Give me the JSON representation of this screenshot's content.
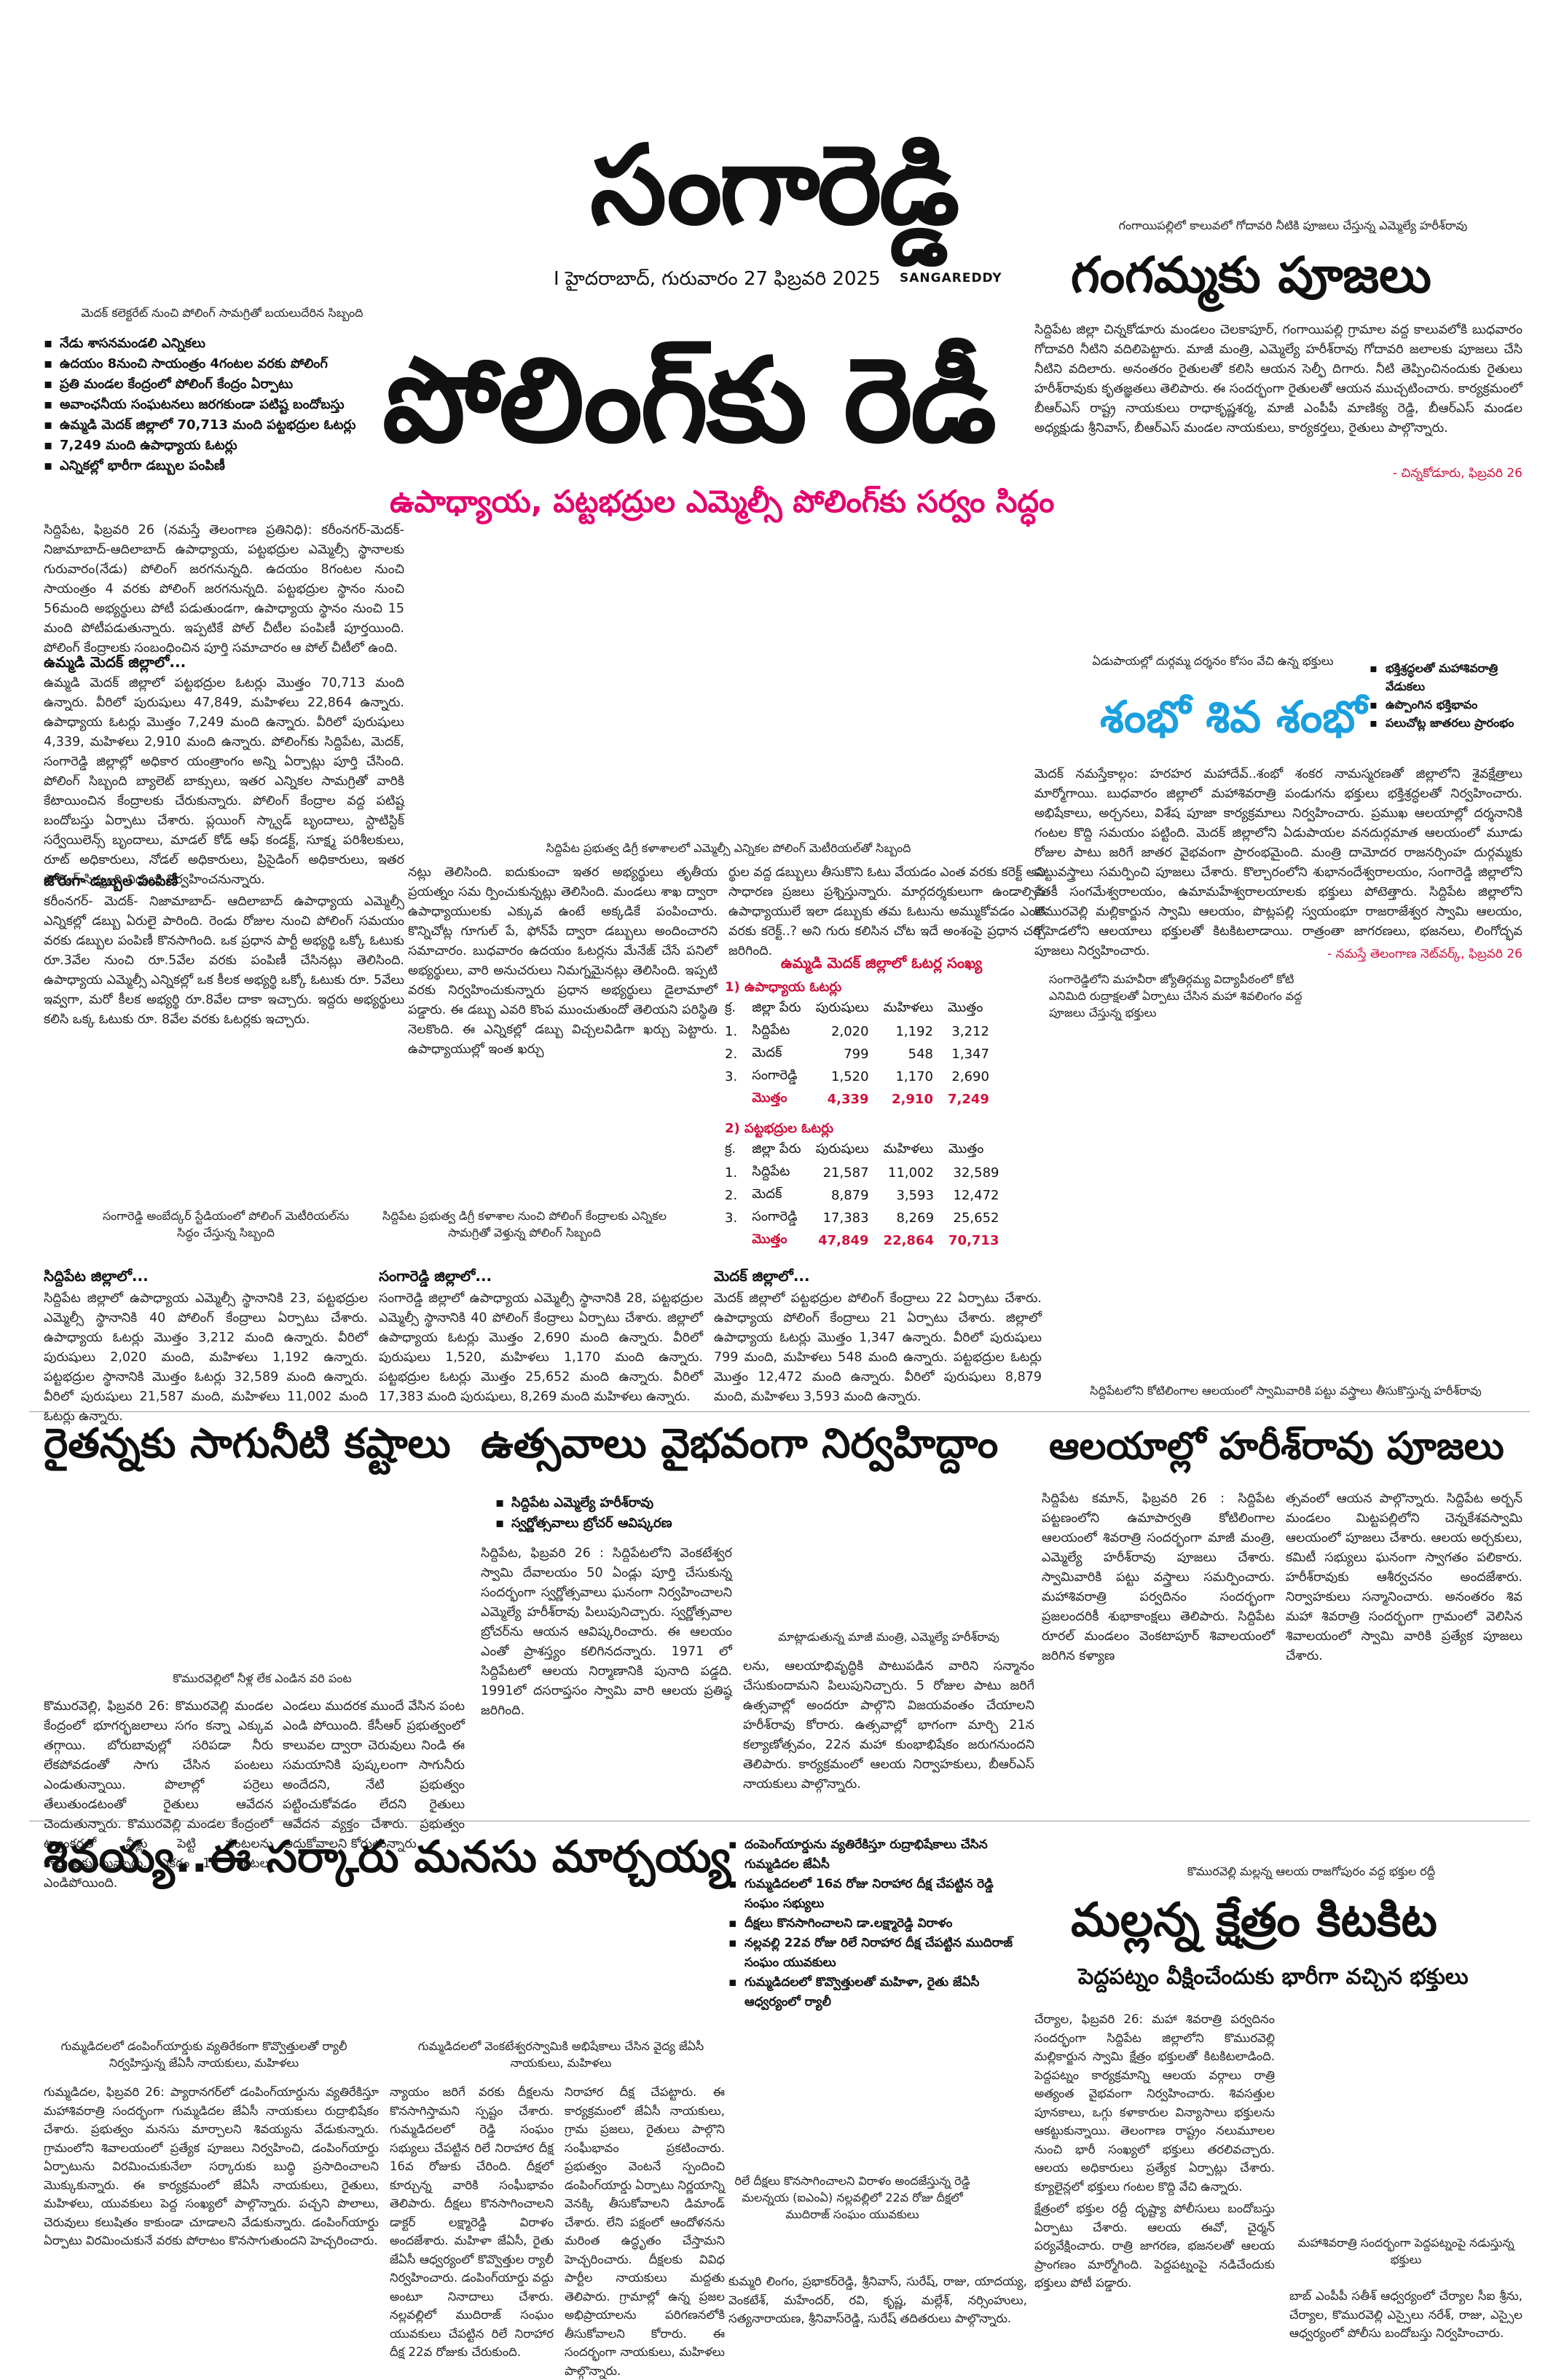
{
  "masthead": {
    "title": "సంగారెడ్డి",
    "subtitle": "SANGAREDDY",
    "dateline": "I   హైదరాబాద్, గురువారం 27 ఫిబ్రవరి 2025"
  },
  "lead": {
    "photo_caption": "మెదక్ కలెక్టరేట్ నుంచి పోలింగ్ సామగ్రితో బయలుదేరిన సిబ్బంది",
    "headline": "పోలింగ్‌కు రెడీ",
    "subheadline": "ఉపాధ్యాయ, పట్టభద్రుల ఎమ్మెల్సీ పోలింగ్‌కు సర్వం సిద్ధం",
    "bullets": [
      "నేడు శాసనమండలి ఎన్నికలు",
      "ఉదయం 8నుంచి సాయంత్రం 4గంటల వరకు పోలింగ్",
      "ప్రతి మండల కేంద్రంలో పోలింగ్ కేంద్రం ఏర్పాటు",
      "అవాంఛనీయ సంఘటనలు జరగకుండా పటిష్ట బందోబస్తు",
      "ఉమ్మడి మెదక్ జిల్లాలో 70,713 మంది పట్టభద్రుల ఓటర్లు",
      "7,249 మంది ఉపాధ్యాయ ఓటర్లు",
      "ఎన్నికల్లో భారీగా డబ్బుల పంపిణీ"
    ],
    "intro": "సిద్దిపేట, ఫిబ్రవరి 26 (నమస్తే తెలంగాణ ప్రతినిధి): కరీంనగర్-మెదక్-నిజామాబాద్-ఆదిలాబాద్ ఉపాధ్యాయ, పట్టభద్రుల ఎమ్మెల్సీ స్థానాలకు గురువారం(నేడు) పోలింగ్ జరగనున్నది. ఉదయం 8గంటల నుంచి సాయంత్రం 4 వరకు పోలింగ్ జరగనున్నది. పట్టభద్రుల స్థానం నుంచి 56మంది అభ్యర్థులు పోటీ పడుతుండగా, ఉపాధ్యాయ స్థానం నుంచి 15 మంది పోటీపడుతున్నారు. ఇప్పటికే పోల్ చీటీల పంపిణీ పూర్తయింది. పోలింగ్ కేంద్రాలకు సంబంధించిన పూర్తి సమాచారం ఆ పోల్ చీటీలో ఉంది.",
    "sub1": "ఉమ్మడి మెదక్ జిల్లాలో...",
    "p1": "ఉమ్మడి మెదక్ జిల్లాలో పట్టభద్రుల ఓటర్లు మొత్తం 70,713 మంది ఉన్నారు. వీరిలో పురుషులు 47,849, మహిళలు 22,864 ఉన్నారు. ఉపాధ్యాయ ఓటర్లు మొత్తం 7,249 మంది ఉన్నారు. వీరిలో పురుషులు 4,339, మహిళలు 2,910 మంది ఉన్నారు. పోలింగ్‌కు సిద్దిపేట, మెదక్, సంగారెడ్డి జిల్లాల్లో అధికార యంత్రాంగం అన్ని ఏర్పాట్లు పూర్తి చేసింది. పోలింగ్ సిబ్బంది బ్యాలెట్ బాక్సులు, ఇతర ఎన్నికల సామగ్రితో వారికి కేటాయించిన కేంద్రాలకు చేరుకున్నారు. పోలింగ్ కేంద్రాల వద్ద పటిష్ట బందోబస్తు ఏర్పాటు చేశారు. ప్లయింగ్ స్క్వాడ్ బృందాలు, స్టాటిస్టిక్ సర్వేయిలెన్స్ బృందాలు, మాడల్ కోడ్ ఆఫ్ కండక్ట్, సూక్ష్మ పరిశీలకులు, రూట్ అధికారులు, నోడల్ అధికారులు, ప్రిసైడింగ్ అధికారులు, ఇతర పోలింగ్ సిబ్బంది విధులు నిర్వహించనున్నారు.",
    "sub2": "జోరుగా డబ్బుల పంపిణీ",
    "p2": "కరీంనగర్- మెదక్- నిజామాబాద్- ఆదిలాబాద్ ఉపాధ్యాయ ఎమ్మెల్సీ ఎన్నికల్లో డబ్బు ఏరులై పారింది. రెండు రోజుల నుంచి పోలింగ్ సమయం వరకు డబ్బుల పంపిణీ కొనసాగింది. ఒక ప్రధాన పార్టీ అభ్యర్థి ఒక్కో ఓటుకు రూ.3వేల నుంచి రూ.5వేల వరకు పంపిణీ చేసినట్లు తెలిసింది. ఉపాధ్యాయ ఎమ్మెల్సీ ఎన్నికల్లో ఒక కీలక అభ్యర్థి ఒక్కో ఓటుకు రూ. 5వేలు ఇవ్వగా, మరో కీలక అభ్యర్థి రూ.8వేల దాకా ఇచ్చారు. ఇద్దరు అభ్యర్థులు కలిసి ఒక్క ఓటుకు రూ. 8వేల వరకు ఓటర్లకు ఇచ్చారు.",
    "photo_caption_mid": "సిద్దిపేట ప్రభుత్వ డిగ్రీ కళాశాలలో ఎమ్మెల్సీ ఎన్నికల పోలింగ్ మెటీరియల్‌తో సిబ్బంది",
    "p3": "నట్లు తెలిసింది. ఐదుకుంచా ఇతర అభ్యర్థులు తృతీయ ప్రయత్నం సమ ర్పించుకున్నట్లు తెలిసింది. మండలు శాఖ ద్వారా ఉపాధ్యాయులకు ఎక్కువ ఉంటే అక్కడికే పంపించారు. కొన్నిచోట్ల గూగుల్ పే, ఫోన్‌పే ద్వారా డబ్బులు అందించారని సమాచారం. బుధవారం ఉదయం ఓటర్లను మేనేజ్ చేసే పనిలో అభ్యర్థులు, వారి అనుచరులు నిమగ్నమైనట్లు తెలిసింది. ఇప్పటి వరకు నిర్వహించుకున్నారు ప్రధాన అభ్యర్థులు డైలామాలో పడ్డారు. ఈ డబ్బు ఎవరి కొంప ముంచుతుందో తెలియని పరిస్థితి నెలకొంది. ఈ ఎన్నికల్లో డబ్బు విచ్చలవిడిగా ఖర్చు పెట్టారు. ఉపాధ్యాయుల్లో ఇంత ఖర్చు",
    "p4": "ర్థుల వద్ద డబ్బులు తీసుకొని ఓటు వేయడం ఎంత వరకు కరెక్ట్ అని సాధారణ ప్రజలు ప్రశ్నిస్తున్నారు. మార్గదర్శకులుగా ఉండాల్సిన ఉపాధ్యాయులే ఇలా డబ్బుకు తమ ఓటును అమ్ముకోవడం ఎంత వరకు కరెక్ట్..? అని గురు కలిసిన చోట ఇదే అంశంపై ప్రధాన చర్చ జరిగింది.",
    "table": {
      "title": "ఉమ్మడి మెదక్ జిల్లాలో ఓటర్ల సంఖ్య",
      "sec1_title": "1) ఉపాధ్యాయ ఓటర్లు",
      "sec2_title": "2) పట్టభద్రుల ఓటర్లు",
      "headers": [
        "క్ర.",
        "జిల్లా పేరు",
        "పురుషులు",
        "మహిళలు",
        "మొత్తం"
      ],
      "sec1_rows": [
        [
          "1.",
          "సిద్దిపేట",
          "2,020",
          "1,192",
          "3,212"
        ],
        [
          "2.",
          "మెదక్",
          "799",
          "548",
          "1,347"
        ],
        [
          "3.",
          "సంగారెడ్డి",
          "1,520",
          "1,170",
          "2,690"
        ]
      ],
      "sec1_total": [
        "",
        "మొత్తం",
        "4,339",
        "2,910",
        "7,249"
      ],
      "sec2_rows": [
        [
          "1.",
          "సిద్దిపేట",
          "21,587",
          "11,002",
          "32,589"
        ],
        [
          "2.",
          "మెదక్",
          "8,879",
          "3,593",
          "12,472"
        ],
        [
          "3.",
          "సంగారెడ్డి",
          "17,383",
          "8,269",
          "25,652"
        ]
      ],
      "sec2_total": [
        "",
        "మొత్తం",
        "47,849",
        "22,864",
        "70,713"
      ]
    },
    "cap_a": "సంగారెడ్డి అంబేద్కర్ స్టేడియంలో పోలింగ్ మెటీరియల్‌ను సిద్ధం చేస్తున్న సిబ్బంది",
    "cap_b": "సిద్దిపేట ప్రభుత్వ డిగ్రీ కళాశాల నుంచి పోలింగ్ కేంద్రాలకు ఎన్నికల సామగ్రితో వెళ్తున్న పోలింగ్ సిబ్బంది",
    "cap_c": "మెదక్ జిల్లాలో...",
    "col_a_sub": "సిద్దిపేట జిల్లాలో...",
    "col_a_text": "సిద్దిపేట జిల్లాలో ఉపాధ్యాయ ఎమ్మెల్సీ స్థానానికి 23, పట్టభద్రుల ఎమ్మెల్సీ స్థానానికి 40 పోలింగ్ కేంద్రాలు ఏర్పాటు చేశారు. ఉపాధ్యాయ ఓటర్లు మొత్తం 3,212 మంది ఉన్నారు. వీరిలో పురుషులు 2,020 మంది, మహిళలు 1,192 ఉన్నారు. పట్టభద్రుల స్థానానికి మొత్తం ఓటర్లు 32,589 మంది ఉన్నారు. వీరిలో పురుషులు 21,587 మంది, మహిళలు 11,002 మంది ఓటర్లు ఉన్నారు.",
    "col_b_sub": "సంగారెడ్డి జిల్లాలో...",
    "col_b_text": "సంగారెడ్డి జిల్లాలో ఉపాధ్యాయ ఎమ్మెల్సీ స్థానానికి 28, పట్టభద్రుల ఎమ్మెల్సీ స్థానానికి 40 పోలింగ్ కేంద్రాలు ఏర్పాటు చేశారు. జిల్లాలో ఉపాధ్యాయ ఓటర్లు మొత్తం 2,690 మంది ఉన్నారు. వీరిలో పురుషులు 1,520, మహిళలు 1,170 మంది ఉన్నారు. పట్టభద్రుల ఓటర్లు మొత్తం 25,652 మంది ఉన్నారు. వీరిలో 17,383 మంది పురుషులు, 8,269 మంది మహిళలు ఉన్నారు.",
    "col_c_text": "మెదక్ జిల్లాలో పట్టభద్రుల పోలింగ్ కేంద్రాలు 22 ఏర్పాటు చేశారు. ఉపాధ్యాయ పోలింగ్ కేంద్రాలు 21 ఏర్పాటు చేశారు. జిల్లాలో ఉపాధ్యాయ ఓటర్లు మొత్తం 1,347 ఉన్నారు. వీరిలో పురుషులు 799 మంది, మహిళలు 548 మంది ఉన్నారు. పట్టభద్రుల ఓటర్లు మొత్తం 12,472 మంది ఉన్నారు. వీరిలో పురుషులు 8,879 మంది, మహిళలు 3,593 మంది ఉన్నారు."
  },
  "ganga": {
    "kicker": "గంగాయిపల్లిలో కాలువలో గోదావరి నీటికి పూజలు చేస్తున్న ఎమ్మెల్యే హరీశ్‌రావు",
    "headline": "గంగమ్మకు పూజలు",
    "body": "సిద్దిపేట జిల్లా చిన్నకోడూరు మండలం చెలకాపూర్, గంగాయిపల్లి గ్రామాల వద్ద కాలువలోకి బుధవారం గోదావరి నీటిని వదిలిపెట్టారు. మాజీ మంత్రి, ఎమ్మెల్యే హరీశ్‌రావు గోదావరి జలాలకు పూజలు చేసి నీటిని వదిలారు. అనంతరం రైతులతో కలిసి ఆయన సెల్ఫీ దిగారు. నీటి తెప్పించినందుకు రైతులు హరీశ్‌రావుకు కృతజ్ఞతలు తెలిపారు. ఈ సందర్భంగా రైతులతో ఆయన ముచ్చటించారు. కార్యక్రమంలో బీఆర్ఎస్ రాష్ట్ర నాయకులు రాధాకృష్ణశర్మ, మాజీ ఎంపీపీ మాణిక్య రెడ్డి, బీఆర్ఎస్ మండల అధ్యక్షుడు శ్రీనివాస్, బీఆర్ఎస్ మండల నాయకులు, కార్యకర్తలు, రైతులు పాల్గొన్నారు.",
    "sig": "- చిన్నకోడూరు, ఫిబ్రవరి 26"
  },
  "shambho": {
    "kicker": "ఏడుపాయల్లో దుర్గమ్మ దర్శనం కోసం వేచి ఉన్న భక్తులు",
    "headline": "శంభో శివ శంభో",
    "bullets": [
      "భక్తిశ్రద్ధలతో మహాశివరాత్రి వేడుకలు",
      "ఉప్పొంగిన భక్తిభావం",
      "పలుచోట్ల జాతరలు ప్రారంభం"
    ],
    "body": "మెదక్ నమస్తేకాల్గం: హరహర మహాదేవ్..శంభో శంకర నామస్మరణతో జిల్లాలోని శైవక్షేత్రాలు మార్మోగాయి. బుధవారం జిల్లాలో మహాశివరాత్రి పండుగను భక్తులు భక్తిశ్రద్ధలతో నిర్వహించారు. అభిషేకాలు, అర్చనలు, విశేష పూజా కార్యక్రమాలు నిర్వహించారు. ప్రముఖ ఆలయాల్లో దర్శనానికి గంటల కొద్ది సమయం పట్టింది. మెదక్ జిల్లాలోని ఏడుపాయల వనదుర్గమాత ఆలయంలో మూడు రోజుల పాటు జరిగే జాతర వైభవంగా ప్రారంభమైంది. మంత్రి దామోదర రాజనర్సింహ దుర్గమ్మకు పట్టువస్త్రాలు సమర్పించి పూజలు చేశారు. కొల్చారంలోని శుభానందేశ్వరాలయం, సంగారెడ్డి జిల్లాలోని కేతకీ సంగమేశ్వరాలయం, ఉమామహేశ్వరాలయాలకు భక్తులు పోటెత్తారు. సిద్దిపేట జిల్లాలోని కొమురవెల్లి మల్లికార్జున స్వామి ఆలయం, పొట్లపల్లి స్వయంభూ రాజరాజేశ్వర స్వామి ఆలయం, కోహెడలోని ఆలయాలు భక్తులతో కిటకిటలాడాయి. రాత్రంతా జాగరణలు, భజనలు, లింగోద్భవ పూజలు నిర్వహించారు.",
    "sig": "- నమస్తే తెలంగాణ నెట్‌వర్క్, ఫిబ్రవరి 26",
    "cap_right": "సంగారెడ్డిలోని మహవీరా జ్యోతిర్గమ్య విద్యాపీఠంలో కోటి ఎనిమిది రుద్రాక్షలతో ఏర్పాటు చేసిన మహా శివలింగం వద్ద పూజలు చేస్తున్న భక్తులు"
  },
  "raithu": {
    "headline": "రైతన్నకు సాగునీటి కష్టాలు",
    "photo_caption": "కొమురవెల్లిలో నీళ్ల లేక ఎండిన వరి పంట",
    "body1": "కొమురవెల్లి, ఫిబ్రవరి 26: కొమురవెల్లి మండల కేంద్రంలో భూగర్భజలాలు సగం కన్నా ఎక్కువ తగ్గాయి. బోరుబావుల్లో సరిపడా నీరు లేకపోవడంతో సాగు చేసిన పంటలు ఎండుతున్నాయి. పొలాల్లో పర్రెలు తేలుతుండటంతో రైతులు ఆవేదన చెందుతున్నారు. కొమురవెల్లి మండల కేంద్రంలో ట్యాంకర్లతో నీళ్లు పెట్టి పంటలను కాపాడుకుంటున్నారు. ఎకరం 10 గుంటలు ఎండిపోయింది.",
    "body2": "ఎండలు ముదరక ముందే వేసిన పంట ఎండి పోయింది. కేసీఆర్ ప్రభుత్వంలో కాలువల ద్వారా చెరువులు నిండి ఈ సమయానికి పుష్కలంగా సాగునీరు అందేదని, నేటి ప్రభుత్వం పట్టించుకోవడం లేదని రైతులు ఆవేదన వ్యక్తం చేశారు. ప్రభుత్వం ఆదుకోవాలని కోరుతున్నారు."
  },
  "utsavalu": {
    "headline": "ఉత్సవాలు వైభవంగా నిర్వహిద్దాం",
    "bullets": [
      "సిద్దిపేట ఎమ్మెల్యే హరీశ్‌రావు",
      "స్వర్ణోత్సవాలు బ్రోచర్ ఆవిష్కరణ"
    ],
    "body1": "సిద్దిపేట, ఫిబ్రవరి 26 : సిద్దిపేటలోని వెంకటేశ్వర స్వామి దేవాలయం 50 ఏండ్లు పూర్తి చేసుకున్న సందర్భంగా స్వర్ణోత్సవాలు ఘనంగా నిర్వహించాలని ఎమ్మెల్యే హరీశ్‌రావు పిలుపునిచ్చారు. స్వర్ణోత్సవాల బ్రోచర్‌ను ఆయన ఆవిష్కరించారు. ఈ ఆలయం ఎంతో ప్రాశస్త్యం కలిగినదన్నారు. 1971 లో సిద్దిపేటలో ఆలయ నిర్మాణానికి పునాది పడ్డది. 1991లో దసరాప్తసం స్వామి వారి ఆలయ ప్రతిష్ఠ జరిగింది.",
    "photo_caption": "మాట్లాడుతున్న మాజీ మంత్రి, ఎమ్మెల్యే హరీశ్‌రావు",
    "body2": "లను, ఆలయాభివృద్ధికి పాటుపడిన వారిని సన్మానం చేసుకుందామని పిలుపునిచ్చారు. 5 రోజుల పాటు జరిగే ఉత్సవాల్లో అందరూ పాల్గొని విజయవంతం చేయాలని హరీశ్‌రావు కోరారు. ఉత్సవాల్లో భాగంగా మార్చి 21న కల్యాణోత్సవం, 22న మహా కుంభాభిషేకం జరుగనుందని తెలిపారు. కార్యక్రమంలో ఆలయ నిర్వాహకులు, బీఆర్ఎస్ నాయకులు పాల్గొన్నారు."
  },
  "alayalu": {
    "kicker": "సిద్దిపేటలోని కోటిలింగాల ఆలయంలో స్వామివారికి పట్టు వస్త్రాలు తీసుకొస్తున్న హరీశ్‌రావు",
    "headline": "ఆలయాల్లో హరీశ్‌రావు పూజలు",
    "body1": "సిద్దిపేట కమాన్, ఫిబ్రవరి 26 : సిద్దిపేట పట్టణంలోని ఉమాపార్వతి కోటిలింగాల ఆలయంలో శివరాత్రి సందర్భంగా మాజీ మంత్రి, ఎమ్మెల్యే హరీశ్‌రావు పూజలు చేశారు. స్వామివారికి పట్టు వస్త్రాలు సమర్పించారు. మహాశివరాత్రి పర్వదినం సందర్భంగా ప్రజలందరికీ శుభాకాంక్షలు తెలిపారు. సిద్దిపేట రూరల్ మండలం వెంకటాపూర్ శివాలయంలో జరిగిన కళ్యాణ",
    "body2": "త్సవంలో ఆయన పాల్గొన్నారు. సిద్దిపేట అర్బన్ మండలం మిట్టపల్లిలోని చెన్నకేశవస్వామి ఆలయంలో పూజలు చేశారు. ఆలయ అర్చకులు, కమిటీ సభ్యులు ఘనంగా స్వాగతం పలికారు. హరీశ్‌రావుకు ఆశీర్వచనం అందజేశారు. నిర్వాహకులు సన్మానించారు. అనంతరం శివ మహా శివరాత్రి సందర్భంగా గ్రామంలో వెలిసిన శివాలయంలో స్వామి వారికి ప్రత్యేక పూజలు చేశారు."
  },
  "shivayya": {
    "headline": "శివయ్య..ఈ సర్కారు మనసు మార్చయ్య",
    "bullets": [
      "దంపెంగ్‌యార్డును వ్యతిరేకిస్తూ రుద్రాభిషేకాలు చేసిన గుమ్మడిదల జేఏసీ",
      "గుమ్మడిదలలో 16వ రోజు నిరాహార దీక్ష చేపట్టిన రెడ్డి సంఘం సభ్యులు",
      "దీక్షలు కొనసాగించాలని డా.లక్ష్మారెడ్డి విరాళం",
      "నల్లవల్లి 22వ రోజు రిలే నిరాహార దీక్ష చేపట్టిన ముదిరాజ్ సంఘం యువకులు",
      "గుమ్మడిదలలో కొవ్వొత్తులతో మహిళా, రైతు జేఏసీ ఆధ్వర్యంలో ర్యాలీ"
    ],
    "cap_left": "గుమ్మడిదలలో డంపింగ్‌యార్డుకు వ్యతిరేకంగా కొవ్వొత్తులతో ర్యాలీ నిర్వహిస్తున్న జేఏసీ నాయకులు, మహిళలు",
    "cap_mid": "గుమ్మడిదలలో వెంకటేశ్వరస్వామికి అభిషేకాలు చేసిన వైద్య జేఏసీ నాయకులు, మహిళలు",
    "cap_right": "రిలే దీక్షలు కొనసాగించాలని విరాళం అందజేస్తున్న రెడ్డి మలన్నయ (ఐఎంఏ) నల్లవల్లిలో 22వ రోజు దీక్షలో ముదిరాజ్ సంఘం యువకులు",
    "body1": "గుమ్మడిదల, ఫిబ్రవరి 26: ప్యారానగర్‌లో డంపింగ్‌యార్డును వ్యతిరేకిస్తూ మహాశివరాత్రి సందర్భంగా గుమ్మడిదల జేఏసీ నాయకులు రుద్రాభిషేకం చేశారు. ప్రభుత్వం మనసు మార్చాలని శివయ్యను వేడుకున్నారు. గ్రామంలోని శివాలయంలో ప్రత్యేక పూజలు నిర్వహించి, డంపింగ్‌యార్డు ఏర్పాటును విరమించుకునేలా సర్కారుకు బుద్ధి ప్రసాదించాలని మొక్కుకున్నారు. ఈ కార్యక్రమంలో జేఏసీ నాయకులు, రైతులు, మహిళలు, యువకులు పెద్ద సంఖ్యలో పాల్గొన్నారు. పచ్చని పొలాలు, చెరువులు కలుషితం కాకుండా చూడాలని వేడుకున్నారు. డంపింగ్‌యార్డు ఏర్పాటు విరమించుకునే వరకు పోరాటం కొనసాగుతుందని హెచ్చరించారు.",
    "body2": "న్యాయం జరిగే వరకు దీక్షలను కొనసాగిస్తామని స్పష్టం చేశారు. గుమ్మడిదలలో రెడ్డి సంఘం సభ్యులు చేపట్టిన రిలే నిరాహార దీక్ష 16వ రోజుకు చేరింది. దీక్షలో కూర్చున్న వారికి సంఘీభావం తెలిపారు. దీక్షలు కొనసాగించాలని డాక్టర్ లక్ష్మారెడ్డి విరాళం అందజేశారు. మహిళా జేఏసీ, రైతు జేఏసీ ఆధ్వర్యంలో కొవ్వొత్తుల ర్యాలీ నిర్వహించారు. డంపింగ్‌యార్డు వద్దు అంటూ నినాదాలు చేశారు. నల్లవల్లిలో ముదిరాజ్ సంఘం యువకులు చేపట్టిన రిలే నిరాహార దీక్ష 22వ రోజుకు చేరుకుంది.",
    "body3": "నిరాహార దీక్ష చేపట్టారు. ఈ కార్యక్రమంలో జేఏసీ నాయకులు, గ్రామ ప్రజలు, రైతులు పాల్గొని సంఘీభావం ప్రకటించారు. ప్రభుత్వం వెంటనే స్పందించి డంపింగ్‌యార్డు ఏర్పాటు నిర్ణయాన్ని వెనక్కి తీసుకోవాలని డిమాండ్ చేశారు. లేని పక్షంలో ఆందోళనను మరింత ఉద్ధృతం చేస్తామని హెచ్చరించారు. దీక్షలకు వివిధ పార్టీల నాయకులు మద్దతు తెలిపారు. గ్రామాల్లో ఉన్న ప్రజల అభిప్రాయాలను పరిగణనలోకి తీసుకోవాలని కోరారు. ఈ సందర్భంగా నాయకులు, మహిళలు పాల్గొన్నారు.",
    "body4": "కుమ్మరి లింగం, ప్రభాకర్‌రెడ్డి, శ్రీనివాస్, సురేష్, రాజు, యాదయ్య, వెంకటేశ్, మహేందర్, రవి, కృష్ణ, మల్లేశ్, నర్సింహులు, సత్యనారాయణ, శ్రీనివాస్‌రెడ్డి, సురేష్ తదితరులు పాల్గొన్నారు."
  },
  "mallanna": {
    "kicker": "కొమురవెల్లి మల్లన్న ఆలయ రాజగోపురం వద్ద భక్తుల రద్దీ",
    "headline": "మల్లన్న క్షేత్రం కిటకిట",
    "subheadline": "పెద్దపట్నం వీక్షించేందుకు భారీగా వచ్చిన భక్తులు",
    "body1": "చేర్యాల, ఫిబ్రవరి 26: మహా శివరాత్రి పర్వదినం సందర్భంగా సిద్దిపేట జిల్లాలోని కొమురవెల్లి మల్లికార్జున స్వామి క్షేత్రం భక్తులతో కిటకిటలాడింది. పెద్దపట్నం కార్యక్రమాన్ని ఆలయ వర్గాలు రాత్రి అత్యంత వైభవంగా నిర్వహించారు. శివసత్తుల పూనకాలు, ఒగ్గు కళాకారుల విన్యాసాలు భక్తులను ఆకట్టుకున్నాయి. తెలంగాణ రాష్ట్రం నలుమూలల నుంచి భారీ సంఖ్యలో భక్తులు తరలివచ్చారు. ఆలయ అధికారులు ప్రత్యేక ఏర్పాట్లు చేశారు. క్యూలైన్లలో భక్తులు గంటల కొద్ది వేచి ఉన్నారు.",
    "body2": "క్షేత్రంలో భక్తుల రద్దీ దృష్ట్యా పోలీసులు బందోబస్తు ఏర్పాటు చేశారు. ఆలయ ఈవో, చైర్మన్ పర్యవేక్షించారు. రాత్రి జాగరణ, భజనలతో ఆలయ ప్రాంగణం మార్మోగింది. పెద్దపట్నంపై నడిచేందుకు భక్తులు పోటీ పడ్డారు.",
    "cap_right": "మహాశివరాత్రి సందర్భంగా పెద్దపట్నంపై నడుస్తున్న భక్తులు",
    "body3": "బాబ్ ఎంపీపీ సతీశ్ ఆధ్వర్యంలో చేర్యాల సీఐ శ్రీను, చేర్యాల, కొమురవెల్లి ఎస్సైలు నరేశ్, రాజు, ఎస్సైల ఆధ్వర్యంలో పోలీసు బందోబస్తు నిర్వహించారు."
  }
}
